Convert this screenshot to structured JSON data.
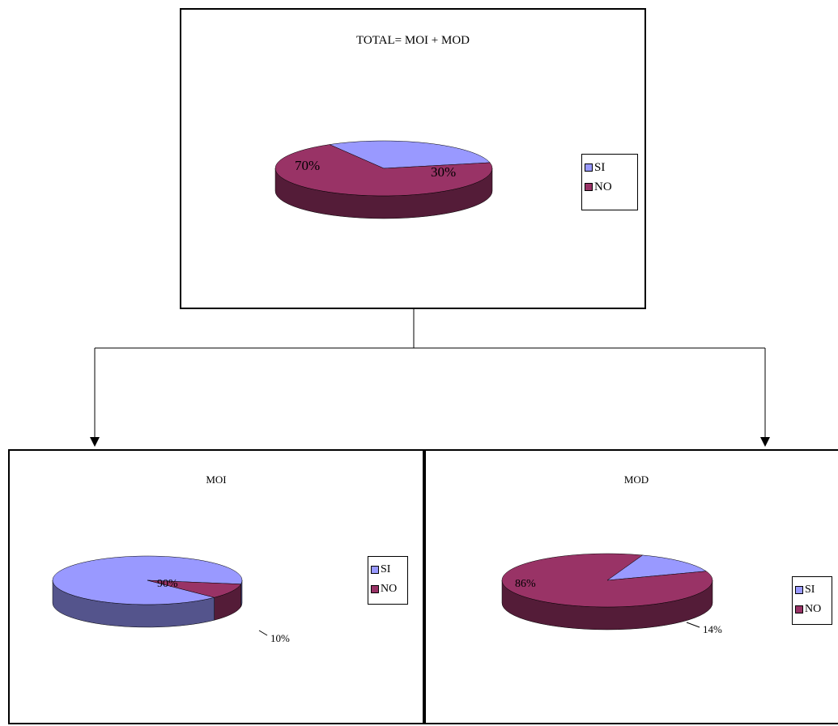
{
  "colors": {
    "si": "#9999ff",
    "no": "#993366"
  },
  "chart_data": [
    {
      "type": "pie",
      "title": "TOTAL= MOI + MOD",
      "categories": [
        "SI",
        "NO"
      ],
      "values": [
        30,
        70
      ],
      "labels": [
        "30%",
        "70%"
      ],
      "legend": {
        "position": "right",
        "entries": [
          "SI",
          "NO"
        ]
      }
    },
    {
      "type": "pie",
      "title": "MOI",
      "categories": [
        "SI",
        "NO"
      ],
      "values": [
        90,
        10
      ],
      "labels": [
        "90%",
        "10%"
      ],
      "legend": {
        "position": "right",
        "entries": [
          "SI",
          "NO"
        ]
      }
    },
    {
      "type": "pie",
      "title": "MOD",
      "categories": [
        "SI",
        "NO"
      ],
      "values": [
        14,
        86
      ],
      "labels": [
        "14%",
        "86%"
      ],
      "legend": {
        "position": "right",
        "entries": [
          "SI",
          "NO"
        ]
      }
    }
  ]
}
